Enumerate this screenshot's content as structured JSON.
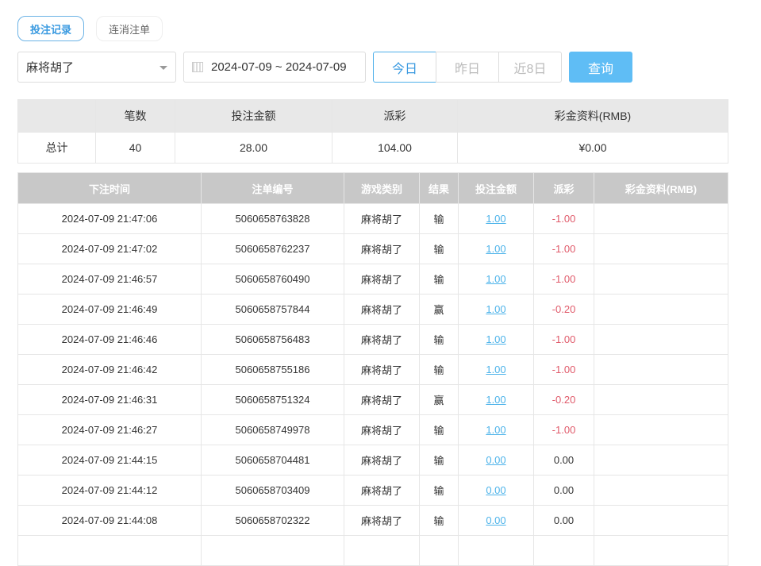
{
  "tabs": [
    {
      "label": "投注记录",
      "active": true
    },
    {
      "label": "连消注单",
      "active": false
    }
  ],
  "filter": {
    "game": "麻将胡了",
    "date_range": "2024-07-09 ~ 2024-07-09",
    "quick": [
      "今日",
      "昨日",
      "近8日"
    ],
    "search": "查询"
  },
  "summary": {
    "headers": [
      "",
      "笔数",
      "投注金额",
      "派彩",
      "彩金资料(RMB)"
    ],
    "row": [
      "总计",
      "40",
      "28.00",
      "104.00",
      "¥0.00"
    ]
  },
  "list": {
    "headers": [
      "下注时间",
      "注单编号",
      "游戏类别",
      "结果",
      "投注金额",
      "派彩",
      "彩金资料(RMB)"
    ],
    "rows": [
      [
        "2024-07-09 21:47:06",
        "5060658763828",
        "麻将胡了",
        "输",
        "1.00",
        "-1.00",
        ""
      ],
      [
        "2024-07-09 21:47:02",
        "5060658762237",
        "麻将胡了",
        "输",
        "1.00",
        "-1.00",
        ""
      ],
      [
        "2024-07-09 21:46:57",
        "5060658760490",
        "麻将胡了",
        "输",
        "1.00",
        "-1.00",
        ""
      ],
      [
        "2024-07-09 21:46:49",
        "5060658757844",
        "麻将胡了",
        "赢",
        "1.00",
        "-0.20",
        ""
      ],
      [
        "2024-07-09 21:46:46",
        "5060658756483",
        "麻将胡了",
        "输",
        "1.00",
        "-1.00",
        ""
      ],
      [
        "2024-07-09 21:46:42",
        "5060658755186",
        "麻将胡了",
        "输",
        "1.00",
        "-1.00",
        ""
      ],
      [
        "2024-07-09 21:46:31",
        "5060658751324",
        "麻将胡了",
        "赢",
        "1.00",
        "-0.20",
        ""
      ],
      [
        "2024-07-09 21:46:27",
        "5060658749978",
        "麻将胡了",
        "输",
        "1.00",
        "-1.00",
        ""
      ],
      [
        "2024-07-09 21:44:15",
        "5060658704481",
        "麻将胡了",
        "输",
        "0.00",
        "0.00",
        ""
      ],
      [
        "2024-07-09 21:44:12",
        "5060658703409",
        "麻将胡了",
        "输",
        "0.00",
        "0.00",
        ""
      ],
      [
        "2024-07-09 21:44:08",
        "5060658702322",
        "麻将胡了",
        "输",
        "0.00",
        "0.00",
        ""
      ],
      [
        "",
        "",
        "",
        "",
        "",
        "",
        ""
      ]
    ]
  },
  "colors": {
    "accent": "#5fbdf5",
    "link": "#4cb3ea",
    "negative": "#e05a6a"
  }
}
